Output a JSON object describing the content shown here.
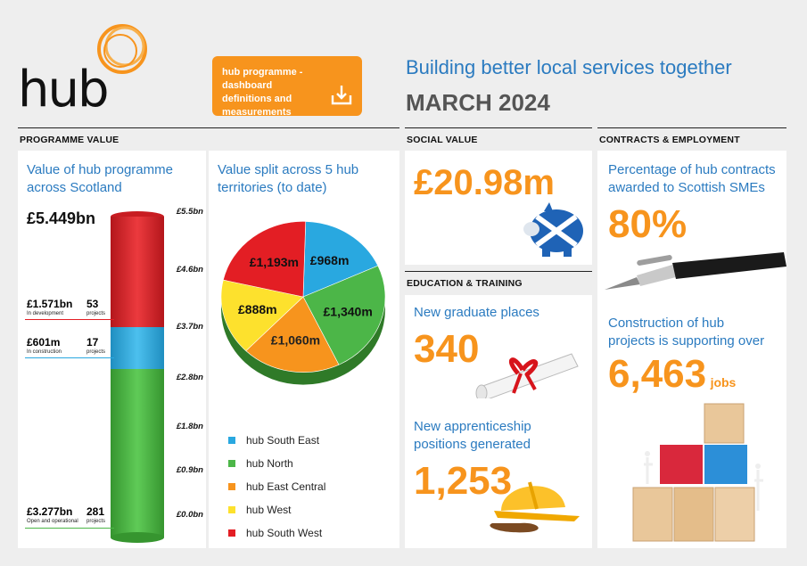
{
  "header": {
    "logo_text": "hub",
    "dashboard_button": "hub programme - dashboard definitions and measurements",
    "headline": "Building better local services together",
    "date": "MARCH 2024"
  },
  "sections": {
    "programme_value": "PROGRAMME VALUE",
    "social_value": "SOCIAL VALUE",
    "contracts": "CONTRACTS & EMPLOYMENT",
    "education": "EDUCATION & TRAINING"
  },
  "programme": {
    "title": "Value of hub programme across Scotland",
    "total": "£5.449bn",
    "rows": [
      {
        "value": "£1.571bn",
        "label": "In development",
        "count": "53",
        "count_label": "projects"
      },
      {
        "value": "£601m",
        "label": "In construction",
        "count": "17",
        "count_label": "projects"
      },
      {
        "value": "£3.277bn",
        "label": "Open and operational",
        "count": "281",
        "count_label": "projects"
      }
    ],
    "ticks": [
      "£5.5bn",
      "£4.6bn",
      "£3.7bn",
      "£2.8bn",
      "£1.8bn",
      "£0.9bn",
      "£0.0bn"
    ],
    "colors": {
      "development": "#e31e24",
      "construction": "#29a8e0",
      "operational": "#4cb648"
    }
  },
  "split": {
    "title": "Value split across 5 hub territories (to date)",
    "legend": [
      {
        "name": "hub South East",
        "color": "#29a8e0"
      },
      {
        "name": "hub North",
        "color": "#4cb648"
      },
      {
        "name": "hub East Central",
        "color": "#f7941d"
      },
      {
        "name": "hub West",
        "color": "#fde12d"
      },
      {
        "name": "hub South West",
        "color": "#e31e24"
      }
    ]
  },
  "chart_data": {
    "type": "pie",
    "title": "",
    "categories": [
      "hub South East",
      "hub North",
      "hub East Central",
      "hub West",
      "hub South West"
    ],
    "labels": [
      "£968m",
      "£1,340m",
      "£1,060m",
      "£888m",
      "£1,193m"
    ],
    "values": [
      968,
      1340,
      1060,
      888,
      1193
    ],
    "legend": "bottom"
  },
  "social": {
    "value": "£20.98m"
  },
  "education": {
    "grad_title": "New graduate places",
    "grad_value": "340",
    "app_title": "New apprenticeship positions generated",
    "app_value": "1,253"
  },
  "contracts": {
    "sme_title": "Percentage of hub contracts awarded to Scottish SMEs",
    "sme_value": "80%",
    "jobs_title": "Construction of hub projects is supporting over",
    "jobs_value": "6,463",
    "jobs_unit": "jobs"
  }
}
